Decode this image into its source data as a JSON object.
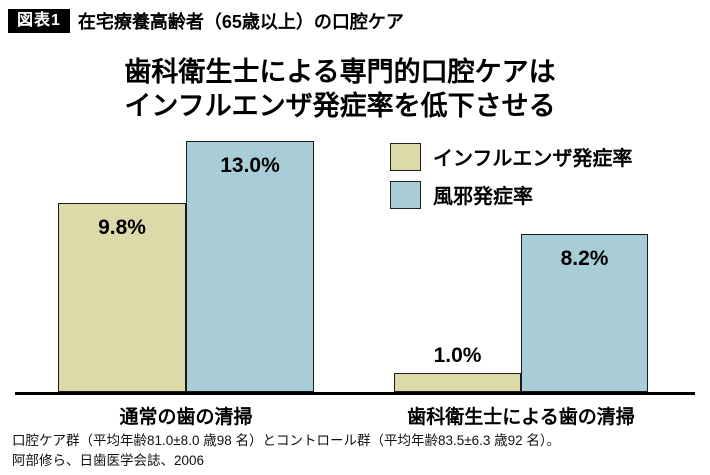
{
  "header": {
    "badge": "図表1",
    "title": "在宅療養高齢者（65歳以上）の口腔ケア"
  },
  "chart_data": {
    "type": "bar",
    "title_line1": "歯科衛生士による専門的口腔ケアは",
    "title_line2": "インフルエンザ発症率を低下させる",
    "categories": [
      "通常の歯の清掃",
      "歯科衛生士による歯の清掃"
    ],
    "series": [
      {
        "name": "インフルエンザ発症率",
        "values": [
          9.8,
          1.0
        ],
        "color": "#ded9a9"
      },
      {
        "name": "風邪発症率",
        "values": [
          13.0,
          8.2
        ],
        "color": "#a9cdd6"
      }
    ],
    "value_labels": [
      [
        "9.8%",
        "13.0%"
      ],
      [
        "1.0%",
        "8.2%"
      ]
    ],
    "xlabel": "",
    "ylabel": "",
    "ylim": [
      0,
      14
    ],
    "grid": false,
    "legend_position": "top-right"
  },
  "footer": {
    "line1": "口腔ケア群（平均年齢81.0±8.0 歳98 名）とコントロール群（平均年齢83.5±6.3 歳92 名）。",
    "line2": "阿部修ら、日歯医学会誌、2006"
  }
}
